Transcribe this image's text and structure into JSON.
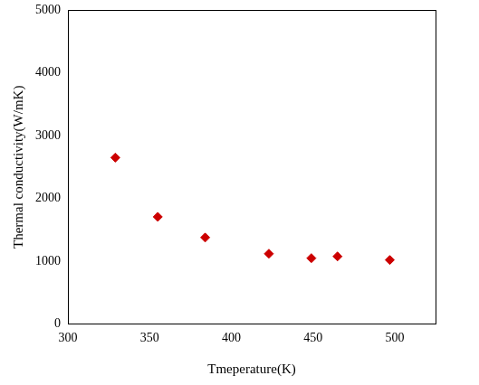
{
  "chart_data": {
    "type": "scatter",
    "x_label": "Tmeperature(K)",
    "y_label": "Thermal conductivity(W/mK)",
    "x": [
      329,
      355,
      384,
      423,
      449,
      465,
      497
    ],
    "values": [
      2650,
      1705,
      1375,
      1117,
      1046,
      1074,
      1017
    ],
    "color": "#cc0000",
    "marker": "diamond",
    "xlim": [
      300,
      525
    ],
    "xticks": [
      300,
      350,
      400,
      450,
      500
    ],
    "ylim": [
      0,
      5000
    ],
    "yticks": [
      0,
      1000,
      2000,
      3000,
      4000,
      5000
    ],
    "grid": false
  }
}
